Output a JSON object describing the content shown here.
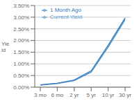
{
  "chart_data": {
    "type": "line",
    "ylabel": "Yie\nld",
    "categories": [
      "3 mo",
      "6 mo",
      "2 yr",
      "5 yr",
      "10 yr",
      "30 yr"
    ],
    "series": [
      {
        "name": "Current Yield",
        "color": "#5599cc",
        "values": [
          0.09,
          0.16,
          0.28,
          0.65,
          1.72,
          2.9
        ]
      },
      {
        "name": "1 Month Ago",
        "color": "#3377bb",
        "values": [
          0.1,
          0.17,
          0.31,
          0.7,
          1.8,
          2.97
        ]
      }
    ],
    "ylim": [
      0.0,
      3.5
    ],
    "yticks": [
      {
        "value": 0.0,
        "label": "0.00%"
      },
      {
        "value": 0.5,
        "label": "0.50%"
      },
      {
        "value": 1.0,
        "label": "1.00%"
      },
      {
        "value": 1.5,
        "label": "1.50%"
      },
      {
        "value": 2.0,
        "label": "2.00%"
      },
      {
        "value": 2.5,
        "label": "2.50%"
      },
      {
        "value": 3.0,
        "label": "3.00%"
      },
      {
        "value": 3.5,
        "label": "3.50%"
      }
    ],
    "grid": true,
    "legend": "upper left"
  }
}
